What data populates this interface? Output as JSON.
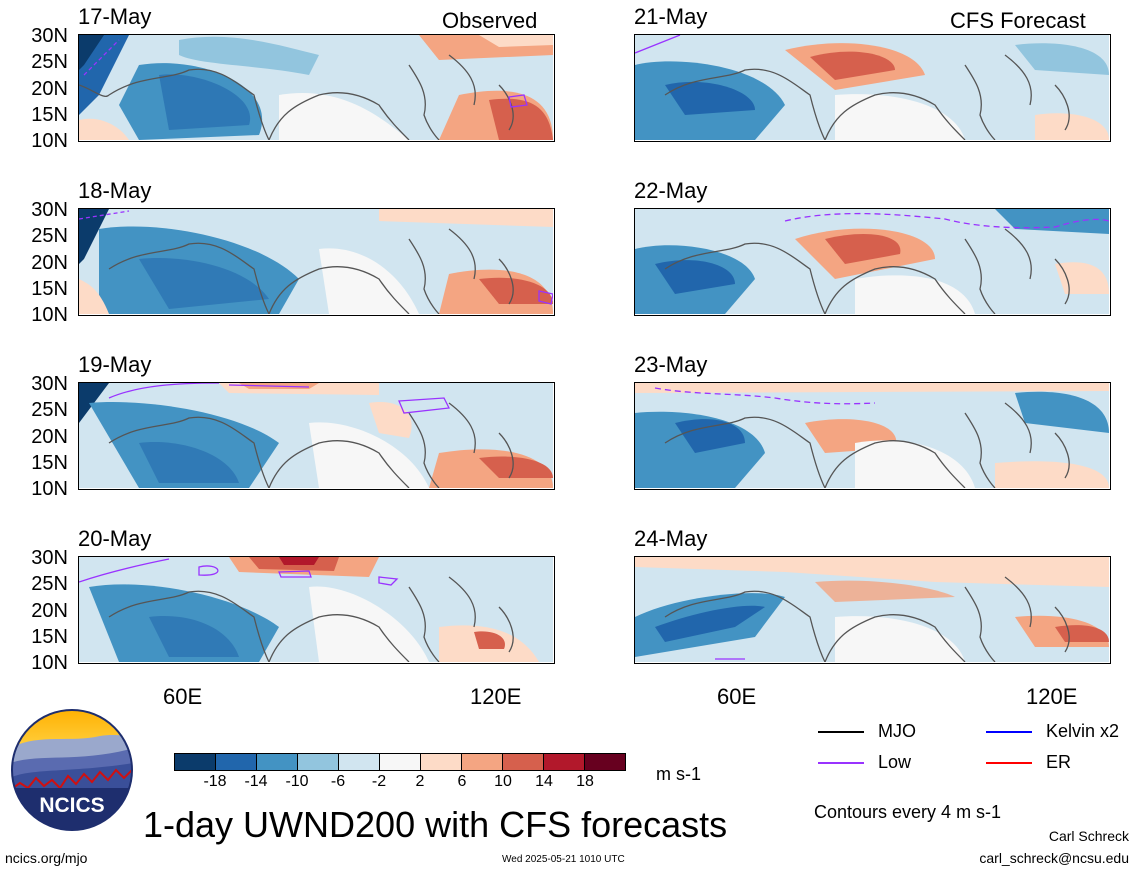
{
  "colors": {
    "scale": [
      "#0b3b6b",
      "#2166ac",
      "#4393c3",
      "#92c5de",
      "#d1e5f0",
      "#f7f7f7",
      "#fddbc7",
      "#f4a582",
      "#d6604d",
      "#b2182b",
      "#67001f"
    ],
    "coast": "#555555",
    "low_contour": "#9933ff",
    "mjo": "#000000",
    "kelvin": "#0000ff",
    "er": "#ff0000"
  },
  "headers": {
    "observed": "Observed",
    "forecast": "CFS Forecast"
  },
  "lat_ticks": [
    "30N",
    "25N",
    "20N",
    "15N",
    "10N"
  ],
  "lon_ticks": [
    "60E",
    "120E"
  ],
  "panels_left": [
    {
      "date": "17-May"
    },
    {
      "date": "18-May"
    },
    {
      "date": "19-May"
    },
    {
      "date": "20-May"
    }
  ],
  "panels_right": [
    {
      "date": "21-May"
    },
    {
      "date": "22-May"
    },
    {
      "date": "23-May"
    },
    {
      "date": "24-May"
    }
  ],
  "colorbar": {
    "labels": [
      "-18",
      "-14",
      "-10",
      "-6",
      "-2",
      "2",
      "6",
      "10",
      "14",
      "18"
    ],
    "units": "m s-1"
  },
  "legend": {
    "mjo": "MJO",
    "kelvin": "Kelvin x2",
    "low": "Low",
    "er": "ER",
    "contours": "Contours every 4 m s-1"
  },
  "title": "1-day UWND200 with CFS forecasts",
  "footer": {
    "left": "ncics.org/mjo",
    "center": "Wed 2025-05-21 1010 UTC",
    "author": "Carl Schreck",
    "email": "carl_schreck@ncsu.edu"
  },
  "logo": {
    "text": "NCICS"
  }
}
